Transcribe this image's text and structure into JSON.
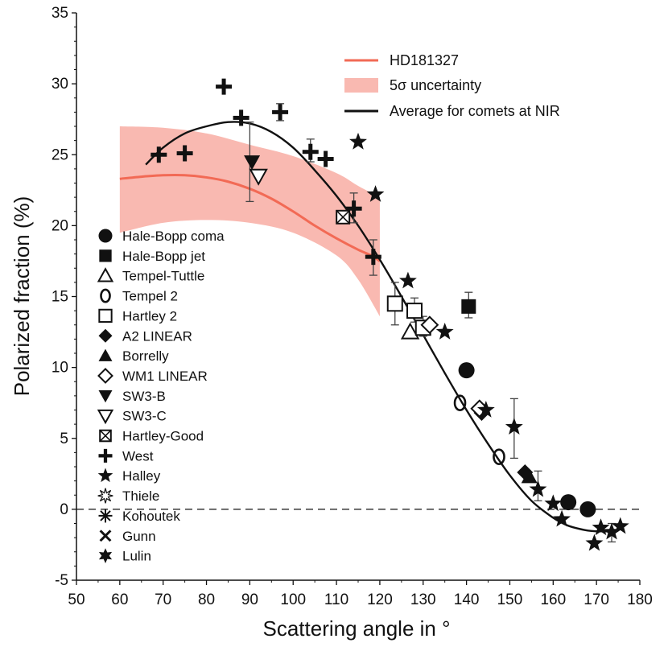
{
  "chart_data": {
    "type": "scatter",
    "title": "",
    "xlabel": "Scattering angle in °",
    "ylabel": "Polarized fraction (%)",
    "xlim": [
      50,
      180
    ],
    "ylim": [
      -5,
      35
    ],
    "xticks": [
      "50",
      "60",
      "70",
      "80",
      "90",
      "100",
      "110",
      "120",
      "130",
      "140",
      "150",
      "160",
      "170",
      "180"
    ],
    "yticks": [
      "-5",
      "0",
      "5",
      "10",
      "15",
      "20",
      "25",
      "30",
      "35"
    ],
    "grid": false,
    "zero_line": "dashed",
    "top_legend": [
      {
        "label": "HD181327",
        "kind": "line",
        "color": "#f26a55"
      },
      {
        "label": "5σ uncertainty",
        "kind": "band",
        "color": "#f9b9b1"
      },
      {
        "label": "Average for comets at NIR",
        "kind": "line",
        "color": "#111111"
      }
    ],
    "hd181327": {
      "x": [
        60,
        65,
        70,
        75,
        80,
        85,
        90,
        95,
        100,
        105,
        110,
        115,
        118,
        120
      ],
      "y": [
        23.3,
        23.45,
        23.55,
        23.55,
        23.4,
        23.1,
        22.6,
        21.9,
        21.0,
        20.0,
        19.1,
        18.3,
        17.9,
        17.5
      ]
    },
    "uncertainty_band": {
      "x": [
        60,
        70,
        80,
        90,
        100,
        110,
        115,
        120
      ],
      "upper": [
        27.0,
        26.9,
        26.5,
        25.7,
        24.9,
        23.7,
        22.8,
        22.0
      ],
      "lower": [
        19.5,
        20.2,
        20.4,
        20.2,
        19.5,
        17.9,
        16.2,
        13.6
      ]
    },
    "average_curve": {
      "x": [
        66,
        70,
        75,
        80,
        85,
        90,
        95,
        100,
        105,
        110,
        115,
        120,
        125,
        130,
        135,
        140,
        145,
        150,
        155,
        160,
        163,
        165,
        168,
        170,
        173,
        175
      ],
      "y": [
        24.3,
        25.5,
        26.5,
        27.0,
        27.3,
        27.2,
        26.6,
        25.5,
        23.9,
        22.1,
        20.0,
        17.6,
        15.0,
        12.3,
        9.6,
        7.0,
        4.6,
        2.4,
        0.6,
        -0.6,
        -1.1,
        -1.3,
        -1.5,
        -1.55,
        -1.55,
        -1.5
      ]
    },
    "series": [
      {
        "name": "Hale-Bopp coma",
        "marker": "circle-filled",
        "x": [
          140,
          163.5,
          168
        ],
        "y": [
          9.8,
          0.5,
          0.0
        ]
      },
      {
        "name": "Hale-Bopp jet",
        "marker": "square-filled",
        "x": [
          140.5
        ],
        "y": [
          14.3
        ]
      },
      {
        "name": "Tempel-Tuttle",
        "marker": "triangle-open",
        "x": [
          127
        ],
        "y": [
          12.5
        ]
      },
      {
        "name": "Tempel 2",
        "marker": "o-open",
        "x": [
          138.5,
          147.5
        ],
        "y": [
          7.5,
          3.7
        ]
      },
      {
        "name": "Hartley 2",
        "marker": "square-open",
        "x": [
          123.5,
          128,
          130
        ],
        "y": [
          14.5,
          14.0,
          12.8
        ]
      },
      {
        "name": "A2 LINEAR",
        "marker": "diamond-filled",
        "x": [
          143.5,
          153.5
        ],
        "y": [
          6.8,
          2.6
        ]
      },
      {
        "name": "Borrelly",
        "marker": "triangle-filled",
        "x": [
          154.5
        ],
        "y": [
          2.3
        ]
      },
      {
        "name": "WM1 LINEAR",
        "marker": "diamond-open",
        "x": [
          131.5,
          143
        ],
        "y": [
          13.0,
          7.1
        ]
      },
      {
        "name": "SW3-B",
        "marker": "triangle-down-filled",
        "x": [
          90.5
        ],
        "y": [
          24.5
        ]
      },
      {
        "name": "SW3-C",
        "marker": "triangle-down-open",
        "x": [
          92
        ],
        "y": [
          23.5
        ]
      },
      {
        "name": "Hartley-Good",
        "marker": "square-cross",
        "x": [
          111.5
        ],
        "y": [
          20.6
        ]
      },
      {
        "name": "West",
        "marker": "plus-thick",
        "x": [
          69,
          75,
          84,
          88,
          97,
          104,
          107.5,
          114,
          118.5
        ],
        "y": [
          25.0,
          25.1,
          29.8,
          27.6,
          28.0,
          25.2,
          24.7,
          21.2,
          17.8
        ]
      },
      {
        "name": "Halley",
        "marker": "star-filled",
        "x": [
          115,
          119,
          126.5,
          135,
          144.5,
          151,
          156.5,
          160,
          162,
          169.5,
          171,
          173.5,
          175.5
        ],
        "y": [
          25.9,
          22.2,
          16.1,
          12.5,
          7.0,
          5.8,
          1.4,
          0.4,
          -0.7,
          -2.4,
          -1.3,
          -1.6,
          -1.2
        ]
      },
      {
        "name": "Thiele",
        "marker": "star-open",
        "x": [],
        "y": []
      },
      {
        "name": "Kohoutek",
        "marker": "asterisk",
        "x": [],
        "y": []
      },
      {
        "name": "Gunn",
        "marker": "x-cross",
        "x": [],
        "y": []
      },
      {
        "name": "Lulin",
        "marker": "star6-filled",
        "x": [],
        "y": []
      }
    ],
    "errorbars": [
      {
        "x": 90,
        "ylow": 21.7,
        "yhigh": 27.3
      },
      {
        "x": 97,
        "ylow": 27.4,
        "yhigh": 28.6
      },
      {
        "x": 104,
        "ylow": 24.5,
        "yhigh": 26.1
      },
      {
        "x": 114,
        "ylow": 20.2,
        "yhigh": 22.3
      },
      {
        "x": 118.5,
        "ylow": 16.5,
        "yhigh": 19.0
      },
      {
        "x": 123.5,
        "ylow": 13.0,
        "yhigh": 16.0
      },
      {
        "x": 128,
        "ylow": 13.2,
        "yhigh": 14.9
      },
      {
        "x": 130,
        "ylow": 12.2,
        "yhigh": 13.6
      },
      {
        "x": 140.5,
        "ylow": 13.5,
        "yhigh": 15.3
      },
      {
        "x": 151,
        "ylow": 3.6,
        "yhigh": 7.8
      },
      {
        "x": 156.5,
        "ylow": 0.6,
        "yhigh": 2.7
      },
      {
        "x": 173.5,
        "ylow": -2.3,
        "yhigh": -1.0
      }
    ]
  }
}
